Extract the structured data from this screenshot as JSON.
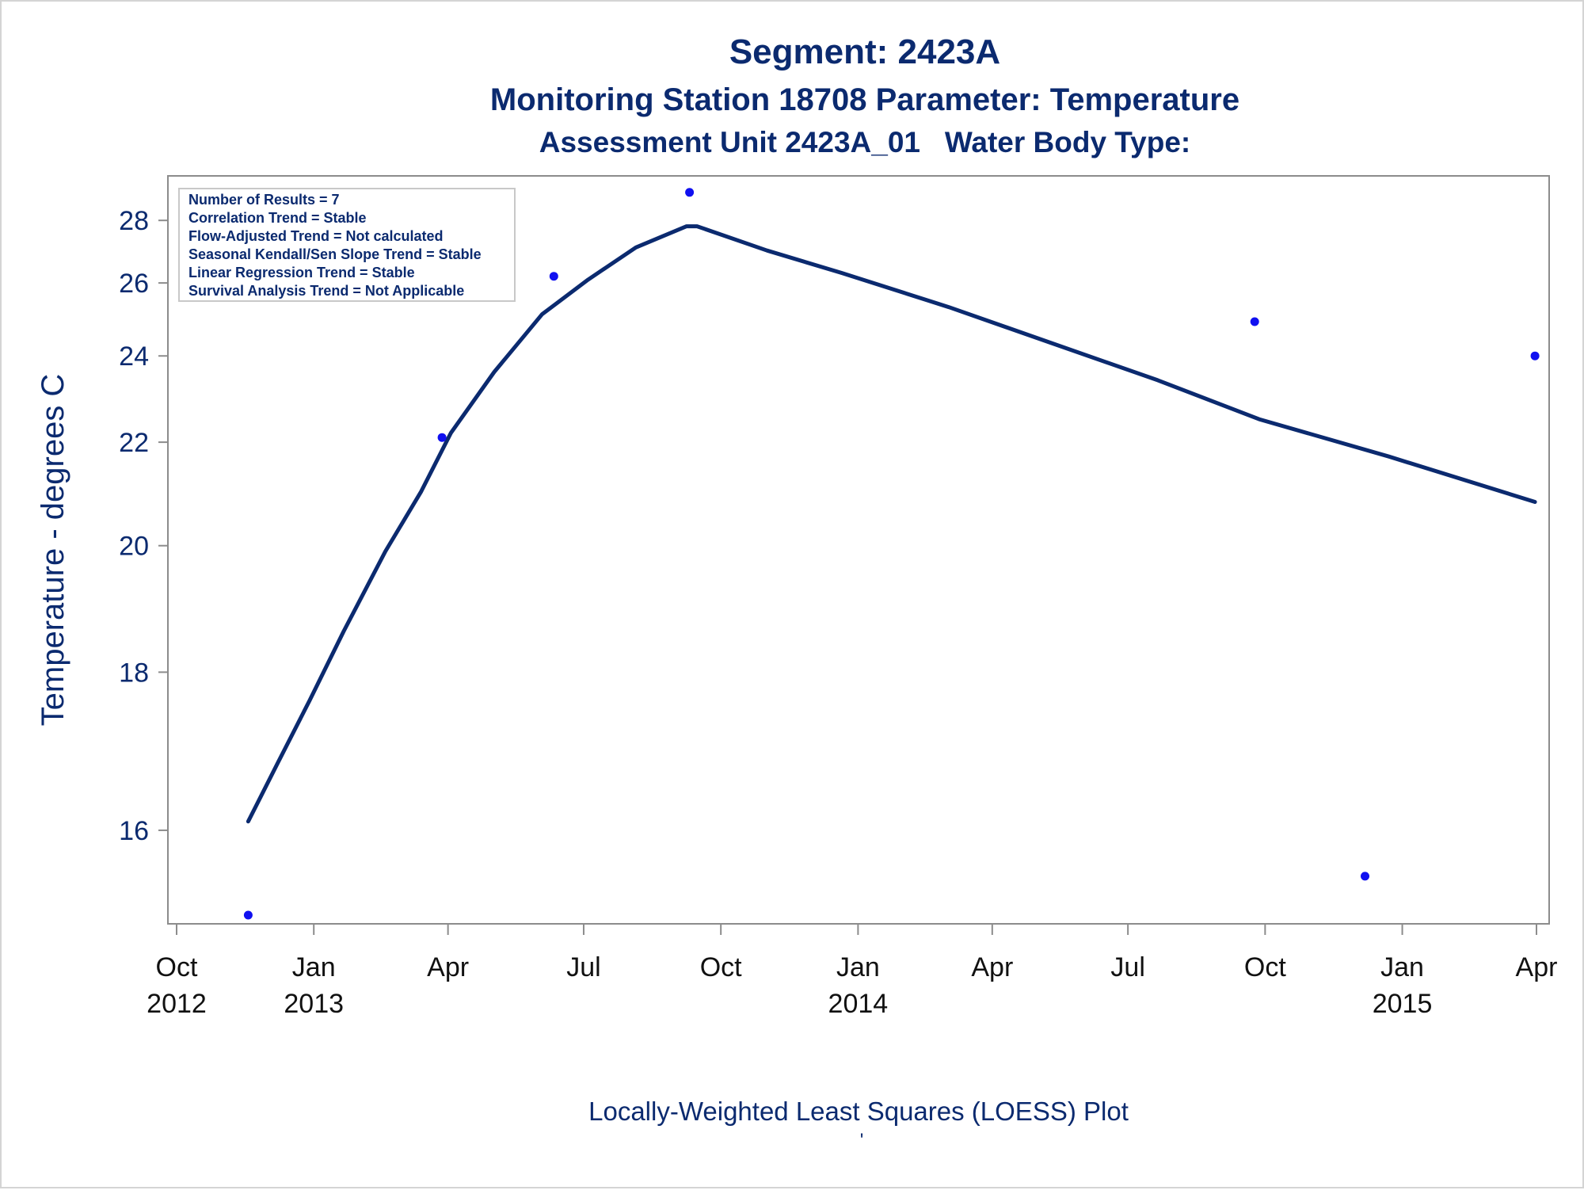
{
  "chart_data": {
    "type": "scatter",
    "title": "Segment: 2423A",
    "subtitle": "Monitoring Station 18708 Parameter: Temperature",
    "subtitle2": "Assessment Unit 2423A_01   Water Body Type:",
    "xlabel": "Locally-Weighted Least Squares (LOESS) Plot",
    "footnote": "'",
    "ylabel": "Temperature - degrees C",
    "y_scale": "reciprocal",
    "ylim": [
      15.1,
      29.2
    ],
    "yticks": [
      16,
      18,
      20,
      22,
      24,
      26,
      28
    ],
    "xlim": [
      "2012-10-01",
      "2015-04-01"
    ],
    "xticks": [
      {
        "date": "2012-10-01",
        "label": [
          "Oct",
          "2012"
        ]
      },
      {
        "date": "2013-01-01",
        "label": [
          "Jan",
          "2013"
        ]
      },
      {
        "date": "2013-04-01",
        "label": [
          "Apr",
          ""
        ]
      },
      {
        "date": "2013-07-01",
        "label": [
          "Jul",
          ""
        ]
      },
      {
        "date": "2013-10-01",
        "label": [
          "Oct",
          ""
        ]
      },
      {
        "date": "2014-01-01",
        "label": [
          "Jan",
          "2014"
        ]
      },
      {
        "date": "2014-04-01",
        "label": [
          "Apr",
          ""
        ]
      },
      {
        "date": "2014-07-01",
        "label": [
          "Jul",
          ""
        ]
      },
      {
        "date": "2014-10-01",
        "label": [
          "Oct",
          ""
        ]
      },
      {
        "date": "2015-01-01",
        "label": [
          "Jan",
          "2015"
        ]
      },
      {
        "date": "2015-04-01",
        "label": [
          "Apr",
          ""
        ]
      }
    ],
    "series": [
      {
        "kind": "points",
        "points": [
          {
            "x": "2012-11-18",
            "y": 15.1
          },
          {
            "x": "2013-03-28",
            "y": 22.1
          },
          {
            "x": "2013-06-11",
            "y": 26.2
          },
          {
            "x": "2013-09-10",
            "y": 29.0
          },
          {
            "x": "2014-09-24",
            "y": 24.9
          },
          {
            "x": "2014-12-07",
            "y": 15.5
          },
          {
            "x": "2015-03-31",
            "y": 24.0
          }
        ]
      },
      {
        "kind": "line",
        "points": [
          {
            "x": "2012-11-18",
            "y": 16.1
          },
          {
            "x": "2012-12-08",
            "y": 16.8
          },
          {
            "x": "2012-12-29",
            "y": 17.6
          },
          {
            "x": "2013-01-21",
            "y": 18.6
          },
          {
            "x": "2013-02-18",
            "y": 19.9
          },
          {
            "x": "2013-03-14",
            "y": 21.0
          },
          {
            "x": "2013-04-03",
            "y": 22.2
          },
          {
            "x": "2013-05-02",
            "y": 23.6
          },
          {
            "x": "2013-06-03",
            "y": 25.1
          },
          {
            "x": "2013-07-04",
            "y": 26.1
          },
          {
            "x": "2013-08-05",
            "y": 27.1
          },
          {
            "x": "2013-09-08",
            "y": 27.8
          },
          {
            "x": "2013-09-15",
            "y": 27.8
          },
          {
            "x": "2013-11-01",
            "y": 27.0
          },
          {
            "x": "2013-12-21",
            "y": 26.3
          },
          {
            "x": "2014-03-03",
            "y": 25.3
          },
          {
            "x": "2014-05-13",
            "y": 24.3
          },
          {
            "x": "2014-07-21",
            "y": 23.4
          },
          {
            "x": "2014-09-27",
            "y": 22.5
          },
          {
            "x": "2014-12-23",
            "y": 21.7
          },
          {
            "x": "2015-03-31",
            "y": 20.8
          }
        ]
      }
    ],
    "legend_position": "top-left",
    "inset": [
      "Number of Results = 7",
      "Correlation Trend = Stable",
      "Flow-Adjusted Trend = Not calculated",
      "Seasonal Kendall/Sen Slope Trend = Stable",
      "Linear Regression Trend = Stable",
      "Survival Analysis Trend = Not Applicable"
    ],
    "grid": false,
    "colors": {
      "text": "#0b2a6f",
      "line": "#0b2a6f",
      "points": "#1010f0",
      "frame": "#8c8c8c"
    }
  }
}
